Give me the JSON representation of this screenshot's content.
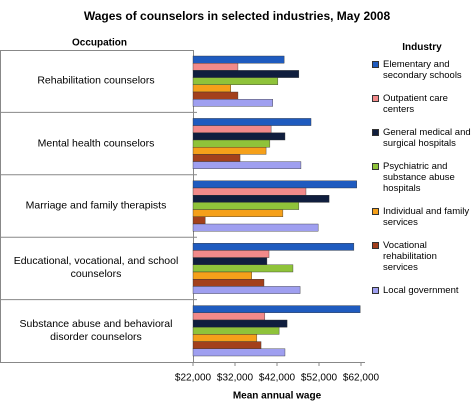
{
  "chart_data": {
    "type": "bar",
    "orientation": "horizontal",
    "title": "Wages of counselors in selected industries, May 2008",
    "ylabel": "Occupation",
    "xlabel": "Mean annual wage",
    "legend_title": "Industry",
    "legend": "right",
    "grid": false,
    "categories": [
      "Rehabilitation counselors",
      "Mental health counselors",
      "Marriage and family therapists",
      "Educational, vocational, and school counselors",
      "Substance abuse and behavioral disorder counselors"
    ],
    "series": [
      {
        "name": "Elementary and secondary schools",
        "color": "#1f5bbf",
        "values": [
          43700,
          50100,
          61000,
          60300,
          61800
        ]
      },
      {
        "name": "Outpatient care centers",
        "color": "#f28a8a",
        "values": [
          32700,
          40600,
          48900,
          40100,
          39100
        ]
      },
      {
        "name": "General medical and surgical hospitals",
        "color": "#101e3e",
        "values": [
          47200,
          43900,
          54400,
          39600,
          44400
        ]
      },
      {
        "name": "Psychiatric and substance abuse hospitals",
        "color": "#8fc33a",
        "values": [
          42200,
          40300,
          47200,
          45800,
          42500
        ]
      },
      {
        "name": "Individual and family services",
        "color": "#f5a01a",
        "values": [
          31000,
          39400,
          43400,
          36000,
          37200
        ]
      },
      {
        "name": "Vocational rehabilitation services",
        "color": "#a3401c",
        "values": [
          32700,
          33200,
          24900,
          38900,
          38200
        ]
      },
      {
        "name": "Local government",
        "color": "#9f9ff0",
        "values": [
          41000,
          47700,
          51800,
          47500,
          43900
        ]
      }
    ],
    "xlim": [
      22000,
      62000
    ],
    "xticks": [
      {
        "value": 22000,
        "label": "$22,000"
      },
      {
        "value": 32000,
        "label": "$32,000"
      },
      {
        "value": 42000,
        "label": "$42,000"
      },
      {
        "value": 52000,
        "label": "$52,000"
      },
      {
        "value": 62000,
        "label": "$62,000"
      }
    ]
  }
}
